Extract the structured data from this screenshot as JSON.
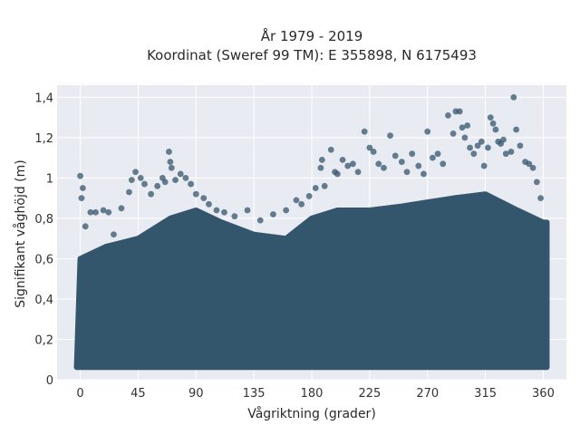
{
  "chart_data": {
    "type": "scatter",
    "title": "År 1979 - 2019",
    "subtitle": "Koordinat (Sweref 99 TM): E 355898, N 6175493",
    "xlabel": "Vågriktning (grader)",
    "ylabel": "Signifikant våghöjd (m)",
    "xlim": [
      -18,
      378
    ],
    "ylim": [
      0,
      1.46
    ],
    "xticks": [
      0,
      45,
      90,
      135,
      180,
      225,
      270,
      315,
      360
    ],
    "xtick_labels": [
      "0",
      "45",
      "90",
      "135",
      "180",
      "225",
      "270",
      "315",
      "360"
    ],
    "yticks": [
      0,
      0.2,
      0.4,
      0.6,
      0.8,
      1.0,
      1.2,
      1.4
    ],
    "ytick_labels": [
      "0",
      "0,2",
      "0,4",
      "0,6",
      "0,8",
      "1",
      "1,2",
      "1,4"
    ],
    "grid": true,
    "background": "#e9ebf2",
    "marker_color": "#34566c",
    "dense_band_upper_by_direction": {
      "x": [
        0,
        20,
        45,
        70,
        90,
        110,
        135,
        160,
        180,
        200,
        225,
        250,
        270,
        290,
        315,
        340,
        360
      ],
      "y": [
        0.6,
        0.66,
        0.7,
        0.8,
        0.84,
        0.78,
        0.72,
        0.7,
        0.8,
        0.84,
        0.84,
        0.86,
        0.88,
        0.9,
        0.92,
        0.84,
        0.78
      ]
    },
    "dense_band_lower": 0.08,
    "points": [
      [
        0,
        1.01
      ],
      [
        1,
        0.9
      ],
      [
        2,
        0.95
      ],
      [
        4,
        0.76
      ],
      [
        8,
        0.83
      ],
      [
        12,
        0.83
      ],
      [
        18,
        0.84
      ],
      [
        22,
        0.83
      ],
      [
        26,
        0.72
      ],
      [
        32,
        0.85
      ],
      [
        38,
        0.93
      ],
      [
        40,
        0.99
      ],
      [
        43,
        1.03
      ],
      [
        47,
        1.0
      ],
      [
        50,
        0.97
      ],
      [
        55,
        0.92
      ],
      [
        60,
        0.96
      ],
      [
        64,
        1.0
      ],
      [
        66,
        0.98
      ],
      [
        69,
        1.13
      ],
      [
        70,
        1.08
      ],
      [
        71,
        1.05
      ],
      [
        74,
        0.99
      ],
      [
        78,
        1.02
      ],
      [
        82,
        1.0
      ],
      [
        86,
        0.97
      ],
      [
        90,
        0.92
      ],
      [
        96,
        0.9
      ],
      [
        100,
        0.87
      ],
      [
        106,
        0.84
      ],
      [
        112,
        0.83
      ],
      [
        120,
        0.81
      ],
      [
        130,
        0.84
      ],
      [
        140,
        0.79
      ],
      [
        150,
        0.82
      ],
      [
        160,
        0.84
      ],
      [
        168,
        0.89
      ],
      [
        172,
        0.87
      ],
      [
        178,
        0.91
      ],
      [
        183,
        0.95
      ],
      [
        187,
        1.05
      ],
      [
        188,
        1.09
      ],
      [
        190,
        0.96
      ],
      [
        195,
        1.14
      ],
      [
        198,
        1.03
      ],
      [
        200,
        1.02
      ],
      [
        204,
        1.09
      ],
      [
        208,
        1.06
      ],
      [
        212,
        1.07
      ],
      [
        216,
        1.03
      ],
      [
        221,
        1.23
      ],
      [
        225,
        1.15
      ],
      [
        228,
        1.13
      ],
      [
        232,
        1.07
      ],
      [
        236,
        1.05
      ],
      [
        241,
        1.21
      ],
      [
        245,
        1.11
      ],
      [
        250,
        1.08
      ],
      [
        254,
        1.03
      ],
      [
        258,
        1.12
      ],
      [
        263,
        1.06
      ],
      [
        267,
        1.02
      ],
      [
        270,
        1.23
      ],
      [
        274,
        1.1
      ],
      [
        278,
        1.12
      ],
      [
        282,
        1.07
      ],
      [
        286,
        1.31
      ],
      [
        290,
        1.22
      ],
      [
        292,
        1.33
      ],
      [
        295,
        1.33
      ],
      [
        297,
        1.25
      ],
      [
        299,
        1.2
      ],
      [
        301,
        1.26
      ],
      [
        303,
        1.15
      ],
      [
        306,
        1.12
      ],
      [
        309,
        1.16
      ],
      [
        312,
        1.18
      ],
      [
        314,
        1.06
      ],
      [
        317,
        1.15
      ],
      [
        319,
        1.3
      ],
      [
        321,
        1.27
      ],
      [
        323,
        1.24
      ],
      [
        325,
        1.18
      ],
      [
        327,
        1.17
      ],
      [
        329,
        1.19
      ],
      [
        331,
        1.12
      ],
      [
        335,
        1.13
      ],
      [
        337,
        1.4
      ],
      [
        339,
        1.24
      ],
      [
        342,
        1.16
      ],
      [
        346,
        1.08
      ],
      [
        349,
        1.07
      ],
      [
        352,
        1.05
      ],
      [
        355,
        0.98
      ],
      [
        358,
        0.9
      ]
    ]
  }
}
